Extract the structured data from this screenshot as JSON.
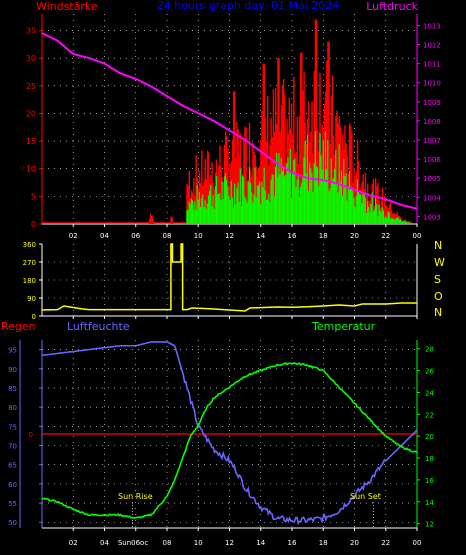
{
  "header": {
    "left_label": "Windstärke",
    "center_title": "24 hours graph day: 01 Mai 2024",
    "right_label": "Luftdruck"
  },
  "panel2": {
    "compass_labels": [
      "N",
      "W",
      "S",
      "O",
      "N"
    ]
  },
  "panel3": {
    "left_label": "Regen",
    "center_label": "Luftfeuchte",
    "right_label": "Temperatur",
    "sun_rise_label": "Sun Rise",
    "sun_set_label": "Sun Set",
    "sun_rise_time_label": "Sun06oc"
  },
  "colors": {
    "background": "#000000",
    "axis": "#ffffff",
    "wind_gust": "#ff0000",
    "wind_avg": "#00ff00",
    "pressure": "#ff00ff",
    "wind_dir": "#ffff00",
    "humidity": "#6666ff",
    "temperature": "#00ff00",
    "rain": "#ff0000",
    "title": "#0000ff",
    "sun_label": "#ffff00"
  },
  "chart_data": [
    {
      "type": "bar",
      "name": "wind_and_pressure",
      "x_tick_labels": [
        "02",
        "04",
        "06",
        "08",
        "10",
        "12",
        "14",
        "16",
        "18",
        "20",
        "22",
        "00"
      ],
      "x_range_hours": [
        0,
        24
      ],
      "y_left": {
        "label": "Windstärke",
        "ticks": [
          0,
          5,
          10,
          15,
          20,
          25,
          30,
          35
        ],
        "range": [
          0,
          38
        ]
      },
      "y_right": {
        "label": "Luftdruck",
        "ticks": [
          1003,
          1004,
          1005,
          1006,
          1007,
          1008,
          1009,
          1010,
          1011,
          1012,
          1013
        ],
        "range": [
          1002.6,
          1013.6
        ]
      },
      "wind_gust_anchors": [
        [
          0,
          0
        ],
        [
          6.8,
          0
        ],
        [
          7.0,
          3
        ],
        [
          7.2,
          0
        ],
        [
          8.2,
          0
        ],
        [
          8.3,
          3
        ],
        [
          8.4,
          0
        ],
        [
          9.2,
          0
        ],
        [
          9.3,
          9
        ],
        [
          10,
          11
        ],
        [
          11,
          12
        ],
        [
          12,
          15
        ],
        [
          13,
          16
        ],
        [
          14,
          20
        ],
        [
          15,
          22
        ],
        [
          16,
          22
        ],
        [
          17,
          25
        ],
        [
          17.5,
          28
        ],
        [
          18,
          27
        ],
        [
          19,
          20
        ],
        [
          20,
          14
        ],
        [
          21,
          8
        ],
        [
          22,
          5
        ],
        [
          23,
          1
        ],
        [
          24,
          0
        ]
      ],
      "wind_gust_spikes": [
        [
          17.5,
          37
        ],
        [
          18.3,
          33
        ],
        [
          16.6,
          31
        ],
        [
          15.1,
          30
        ],
        [
          14.2,
          29
        ],
        [
          12.3,
          24
        ]
      ],
      "wind_avg_anchors": [
        [
          0,
          0
        ],
        [
          9.2,
          0
        ],
        [
          9.3,
          4
        ],
        [
          10,
          6
        ],
        [
          11,
          7
        ],
        [
          12,
          8
        ],
        [
          13,
          9
        ],
        [
          14,
          10
        ],
        [
          15,
          11
        ],
        [
          16,
          12
        ],
        [
          17,
          14
        ],
        [
          18,
          15
        ],
        [
          19,
          12
        ],
        [
          20,
          8
        ],
        [
          21,
          5
        ],
        [
          22,
          3
        ],
        [
          23,
          1
        ],
        [
          24,
          0
        ]
      ],
      "pressure_series": [
        [
          0,
          1012.6
        ],
        [
          1,
          1012.2
        ],
        [
          2,
          1011.5
        ],
        [
          3,
          1011.3
        ],
        [
          4,
          1011.0
        ],
        [
          5,
          1010.5
        ],
        [
          6,
          1010.2
        ],
        [
          7,
          1009.8
        ],
        [
          8,
          1009.3
        ],
        [
          9,
          1008.8
        ],
        [
          10,
          1008.4
        ],
        [
          11,
          1008.0
        ],
        [
          12,
          1007.5
        ],
        [
          13,
          1007.0
        ],
        [
          14,
          1006.4
        ],
        [
          15,
          1005.8
        ],
        [
          16,
          1005.3
        ],
        [
          17,
          1005.0
        ],
        [
          18,
          1004.9
        ],
        [
          19,
          1004.7
        ],
        [
          20,
          1004.4
        ],
        [
          21,
          1004.1
        ],
        [
          22,
          1003.9
        ],
        [
          23,
          1003.6
        ],
        [
          24,
          1003.4
        ]
      ]
    },
    {
      "type": "line",
      "name": "wind_direction",
      "x_tick_labels": [
        "02",
        "04",
        "06",
        "08",
        "10",
        "12",
        "14",
        "16",
        "18",
        "20",
        "22",
        "00"
      ],
      "x_range_hours": [
        0,
        24
      ],
      "y": {
        "ticks": [
          0,
          90,
          180,
          270,
          360
        ],
        "range": [
          0,
          360
        ]
      },
      "series": [
        [
          0,
          30
        ],
        [
          1.0,
          32
        ],
        [
          1.4,
          50
        ],
        [
          1.8,
          45
        ],
        [
          2.6,
          35
        ],
        [
          3.0,
          32
        ],
        [
          4,
          32
        ],
        [
          5,
          32
        ],
        [
          6,
          32
        ],
        [
          7,
          32
        ],
        [
          8,
          32
        ],
        [
          8.25,
          32
        ],
        [
          8.25,
          360
        ],
        [
          8.35,
          360
        ],
        [
          8.35,
          270
        ],
        [
          8.9,
          270
        ],
        [
          8.9,
          360
        ],
        [
          9.0,
          360
        ],
        [
          9.0,
          32
        ],
        [
          9.3,
          32
        ],
        [
          9.6,
          40
        ],
        [
          10.2,
          38
        ],
        [
          11,
          35
        ],
        [
          12,
          30
        ],
        [
          13,
          25
        ],
        [
          13.3,
          40
        ],
        [
          14,
          42
        ],
        [
          15,
          45
        ],
        [
          16,
          44
        ],
        [
          17,
          46
        ],
        [
          18,
          50
        ],
        [
          19,
          55
        ],
        [
          20,
          50
        ],
        [
          20.5,
          60
        ],
        [
          21,
          60
        ],
        [
          22,
          60
        ],
        [
          23,
          65
        ],
        [
          24,
          65
        ]
      ]
    },
    {
      "type": "line",
      "name": "humidity_temperature_rain",
      "x_tick_labels": [
        "02",
        "04",
        "06",
        "08",
        "10",
        "12",
        "14",
        "16",
        "18",
        "20",
        "22",
        "00"
      ],
      "x_range_hours": [
        0,
        24
      ],
      "y_left": {
        "label": "Luftfeuchte",
        "ticks": [
          50,
          55,
          60,
          65,
          70,
          75,
          80,
          85,
          90,
          95
        ],
        "range": [
          48.5,
          97.5
        ]
      },
      "y_right": {
        "label": "Temperatur",
        "ticks": [
          12,
          14,
          16,
          18,
          20,
          22,
          24,
          26,
          28
        ],
        "range": [
          11.6,
          28.8
        ]
      },
      "humidity_series": [
        [
          0,
          93.5
        ],
        [
          1,
          94
        ],
        [
          2,
          94.5
        ],
        [
          3,
          95
        ],
        [
          4,
          95.5
        ],
        [
          5,
          96
        ],
        [
          6,
          96
        ],
        [
          7,
          97
        ],
        [
          8,
          97
        ],
        [
          8.5,
          96
        ],
        [
          9,
          89
        ],
        [
          9.5,
          82
        ],
        [
          10,
          75
        ],
        [
          10.5,
          72
        ],
        [
          11,
          69
        ],
        [
          12,
          66
        ],
        [
          12.5,
          63
        ],
        [
          13,
          59
        ],
        [
          14,
          54
        ],
        [
          15,
          51
        ],
        [
          16,
          50.5
        ],
        [
          17,
          50.5
        ],
        [
          18,
          51
        ],
        [
          19,
          53
        ],
        [
          20,
          57
        ],
        [
          21,
          61
        ],
        [
          22,
          66
        ],
        [
          23,
          70
        ],
        [
          24,
          74
        ]
      ],
      "temperature_series": [
        [
          0,
          14.3
        ],
        [
          1,
          14
        ],
        [
          2,
          13.3
        ],
        [
          3,
          12.8
        ],
        [
          4,
          12.8
        ],
        [
          5,
          12.8
        ],
        [
          6,
          12.5
        ],
        [
          7,
          12.8
        ],
        [
          8,
          14.5
        ],
        [
          8.5,
          16
        ],
        [
          9,
          18
        ],
        [
          9.5,
          20
        ],
        [
          10,
          21
        ],
        [
          10.5,
          22.5
        ],
        [
          11,
          23.5
        ],
        [
          12,
          24.5
        ],
        [
          13,
          25.5
        ],
        [
          14,
          26
        ],
        [
          15,
          26.5
        ],
        [
          16,
          26.7
        ],
        [
          17,
          26.5
        ],
        [
          18,
          26
        ],
        [
          19,
          24.5
        ],
        [
          20,
          23
        ],
        [
          21,
          21.5
        ],
        [
          22,
          20
        ],
        [
          23,
          19
        ],
        [
          24,
          18.5
        ]
      ],
      "rain_level": 0,
      "sun_rise_hour": 5.8,
      "sun_set_hour": 21.2
    }
  ]
}
